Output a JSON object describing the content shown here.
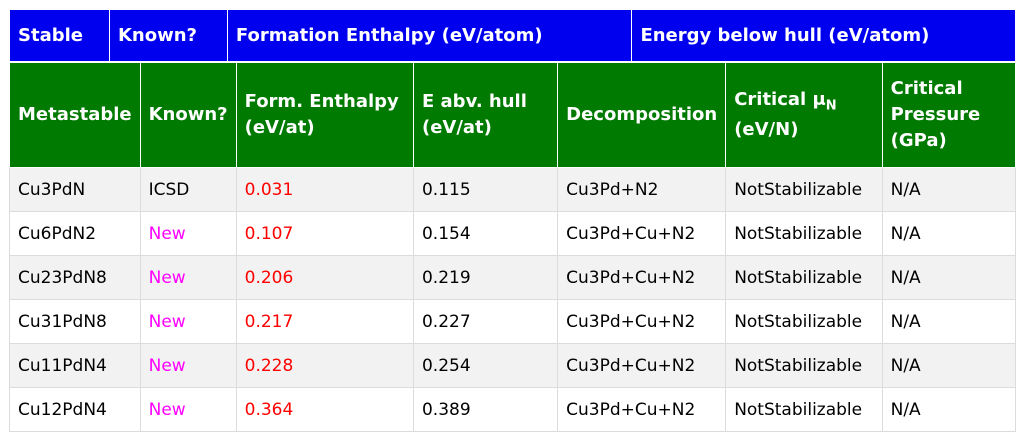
{
  "stable_header": [
    "Stable",
    "Known?",
    "Formation Enthalpy (eV/atom)",
    "Energy below hull (eV/atom)"
  ],
  "meta_header": {
    "metastable": "Metastable",
    "known": "Known?",
    "form_enthalpy": [
      "Form. Enthalpy",
      "(eV/at)"
    ],
    "e_above_hull": [
      "E abv. hull",
      "(eV/at)"
    ],
    "decomposition": "Decomposition",
    "critical_mu": [
      "Critical μ",
      "N",
      "(eV/N)"
    ],
    "critical_pressure": [
      "Critical",
      "Pressure",
      "(GPa)"
    ]
  },
  "rows": [
    {
      "formula": "Cu3PdN",
      "known": "ICSD",
      "enthalpy": "0.031",
      "hull": "0.115",
      "decomp": "Cu3Pd+N2",
      "mu": "NotStabilizable",
      "pressure": "N/A"
    },
    {
      "formula": "Cu6PdN2",
      "known": "New",
      "enthalpy": "0.107",
      "hull": "0.154",
      "decomp": "Cu3Pd+Cu+N2",
      "mu": "NotStabilizable",
      "pressure": "N/A"
    },
    {
      "formula": "Cu23PdN8",
      "known": "New",
      "enthalpy": "0.206",
      "hull": "0.219",
      "decomp": "Cu3Pd+Cu+N2",
      "mu": "NotStabilizable",
      "pressure": "N/A"
    },
    {
      "formula": "Cu31PdN8",
      "known": "New",
      "enthalpy": "0.217",
      "hull": "0.227",
      "decomp": "Cu3Pd+Cu+N2",
      "mu": "NotStabilizable",
      "pressure": "N/A"
    },
    {
      "formula": "Cu11PdN4",
      "known": "New",
      "enthalpy": "0.228",
      "hull": "0.254",
      "decomp": "Cu3Pd+Cu+N2",
      "mu": "NotStabilizable",
      "pressure": "N/A"
    },
    {
      "formula": "Cu12PdN4",
      "known": "New",
      "enthalpy": "0.364",
      "hull": "0.389",
      "decomp": "Cu3Pd+Cu+N2",
      "mu": "NotStabilizable",
      "pressure": "N/A"
    }
  ],
  "colors": {
    "stable_header_bg": "#0000ee",
    "meta_header_bg": "#007a00",
    "known_new": "#ff00ff",
    "enthalpy": "#ff0000"
  }
}
